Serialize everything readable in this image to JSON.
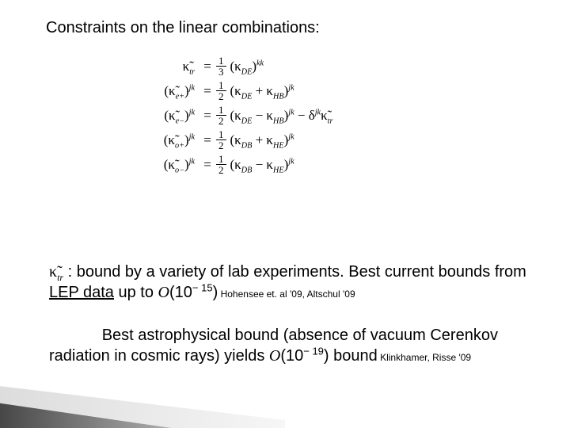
{
  "heading": "Constraints on the linear combinations:",
  "equations": [
    {
      "lhs_html": "κ̃<sub class='isub'>tr</sub>",
      "num": "1",
      "den": "3",
      "rhs_html": "(κ<sub class='isub'>DE</sub>)<sup class='isup'>kk</sup>"
    },
    {
      "lhs_html": "(κ̃<sub class='isub'>e+</sub>)<sup class='isup'>jk</sup>",
      "num": "1",
      "den": "2",
      "rhs_html": "(κ<sub class='isub'>DE</sub> + κ<sub class='isub'>HB</sub>)<sup class='isup'>jk</sup>"
    },
    {
      "lhs_html": "(κ̃<sub class='isub'>e−</sub>)<sup class='isup'>jk</sup>",
      "num": "1",
      "den": "2",
      "rhs_html": "(κ<sub class='isub'>DE</sub> − κ<sub class='isub'>HB</sub>)<sup class='isup'>jk</sup> − δ<sup class='isup'>jk</sup>κ̃<sub class='isub'>tr</sub>"
    },
    {
      "lhs_html": "(κ̃<sub class='isub'>o+</sub>)<sup class='isup'>jk</sup>",
      "num": "1",
      "den": "2",
      "rhs_html": "(κ<sub class='isub'>DB</sub> + κ<sub class='isub'>HE</sub>)<sup class='isup'>jk</sup>"
    },
    {
      "lhs_html": "(κ̃<sub class='isub'>o−</sub>)<sup class='isup'>jk</sup>",
      "num": "1",
      "den": "2",
      "rhs_html": "(κ<sub class='isub'>DB</sub> − κ<sub class='isub'>HE</sub>)<sup class='isup'>jk</sup>"
    }
  ],
  "para1": {
    "ktr": "κ̃",
    "ktr_sub": "tr",
    "lead": " :   bound by a variety of lab experiments. Best current bounds from ",
    "underlined": "LEP data",
    "mid": " up to ",
    "order_prefix": "O",
    "order_body": "(10",
    "order_exp": "− 15",
    "order_close": ")",
    "cite": " Hohensee et. al '09, Altschul '09"
  },
  "para2": {
    "indent": "            ",
    "text1": "Best astrophysical bound (absence of vacuum Cerenkov radiation in cosmic rays) yields ",
    "order_prefix": "O",
    "order_body": "(10",
    "order_exp": "− 19",
    "order_close": ")",
    "text2": " bound",
    "cite": " Klinkhamer, Risse '09"
  },
  "colors": {
    "text": "#000000",
    "background": "#ffffff",
    "decor_grad_dark": "#2b2b2b",
    "decor_grad_light": "#e4e4e4"
  },
  "fontsizes": {
    "heading": 20,
    "body": 20,
    "equations": 17,
    "cite": 12
  }
}
